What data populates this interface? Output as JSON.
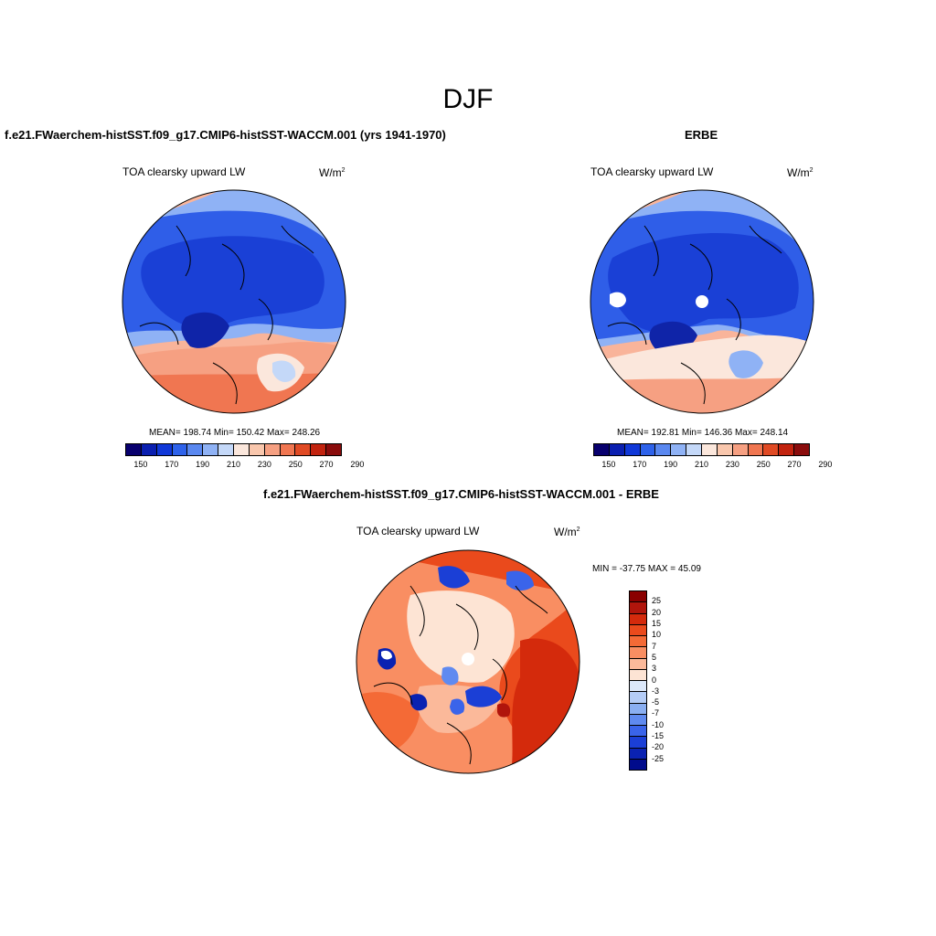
{
  "title": "DJF",
  "panels": {
    "model": {
      "title": "f.e21.FWaerchem-histSST.f09_g17.CMIP6-histSST-WACCM.001 (yrs 1941-1970)",
      "var_label": "TOA clearsky upward LW",
      "units": "W/m",
      "units_exp": "2",
      "stats": "MEAN= 198.74  Min= 150.42  Max= 248.26"
    },
    "obs": {
      "title": "ERBE",
      "var_label": "TOA clearsky upward LW",
      "units": "W/m",
      "units_exp": "2",
      "stats": "MEAN= 192.81  Min= 146.36  Max= 248.14"
    },
    "diff": {
      "title": "f.e21.FWaerchem-histSST.f09_g17.CMIP6-histSST-WACCM.001 - ERBE",
      "var_label": "TOA clearsky upward LW",
      "units": "W/m",
      "units_exp": "2",
      "minmax": "MIN = -37.75 MAX =  45.09"
    }
  },
  "colorbars": {
    "abs": {
      "colors": [
        "#08006e",
        "#0a1fb0",
        "#1038d8",
        "#2e62ea",
        "#5a88f0",
        "#8fb2f5",
        "#c4d8f8",
        "#fbe7dc",
        "#f9c7ad",
        "#f6a082",
        "#f07651",
        "#e04a24",
        "#c2230f",
        "#8a0c0c"
      ],
      "labels": [
        "150",
        "170",
        "190",
        "210",
        "230",
        "250",
        "270",
        "290"
      ]
    },
    "diff": {
      "colors": [
        "#8a0000",
        "#b0150c",
        "#d42a0c",
        "#ea4a1c",
        "#f46a36",
        "#f98e62",
        "#fbb99a",
        "#fde4d4",
        "#dce8fa",
        "#b4ccf6",
        "#8aaff2",
        "#5f8af0",
        "#3a64ea",
        "#1b3fd6",
        "#0a22b2",
        "#000b8c"
      ],
      "labels": [
        "25",
        "20",
        "15",
        "10",
        "7",
        "5",
        "3",
        "0",
        "-3",
        "-5",
        "-7",
        "-10",
        "-15",
        "-20",
        "-25"
      ]
    }
  },
  "colors": {
    "deep_blue": "#1a40d6",
    "mid_blue": "#2f5ee8",
    "light_blue": "#8fb2f5",
    "pale_red": "#fbe7dc",
    "salmon": "#f9b49a",
    "red": "#e8461c",
    "dark_red": "#c92a0f"
  }
}
